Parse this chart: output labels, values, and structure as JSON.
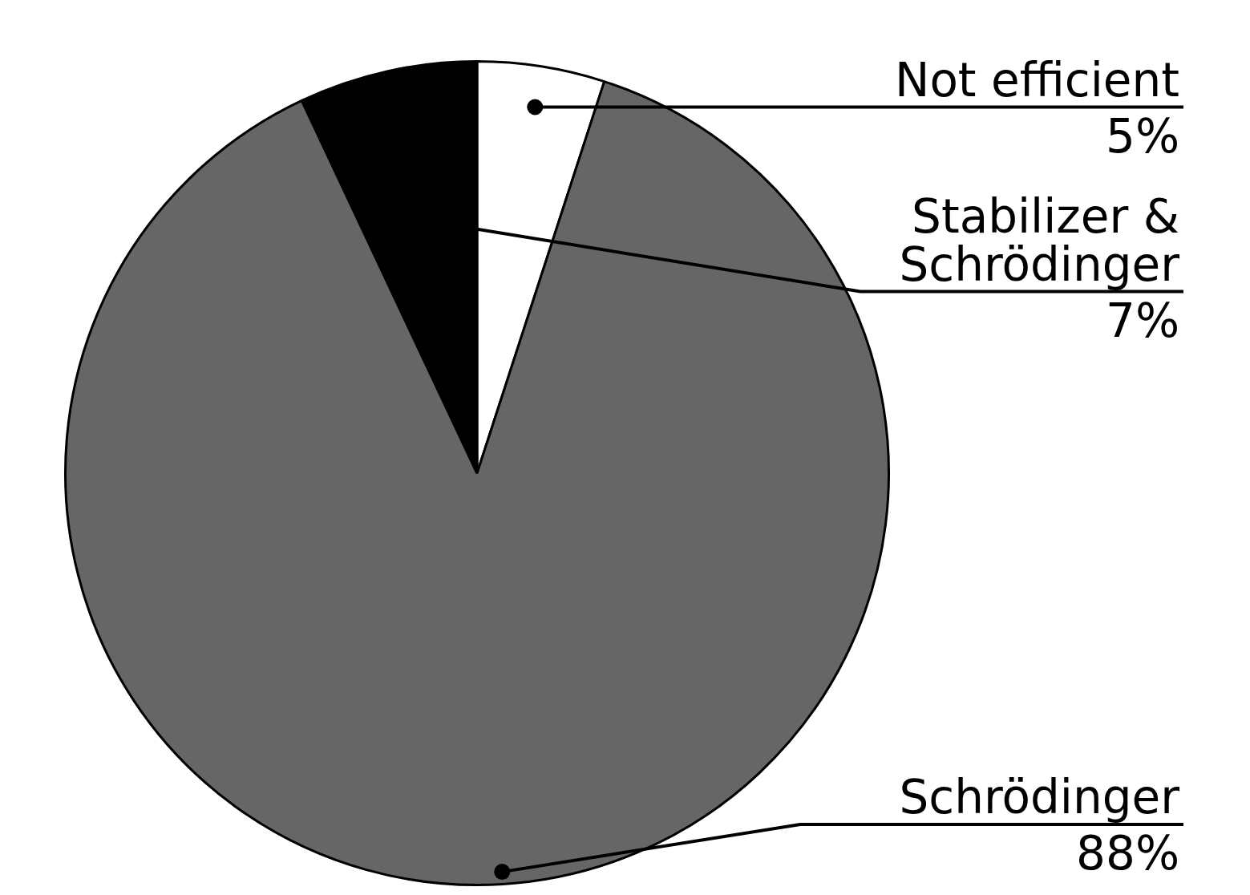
{
  "chart_data": {
    "type": "pie",
    "categories": [
      "Not efficient",
      "Schrödinger",
      "Stabilizer & Schrödinger"
    ],
    "values": [
      5,
      88,
      7
    ],
    "colors": [
      "#ffffff",
      "#666666",
      "#000000"
    ],
    "value_labels": [
      "5%",
      "88%",
      "7%"
    ],
    "legend": false
  }
}
